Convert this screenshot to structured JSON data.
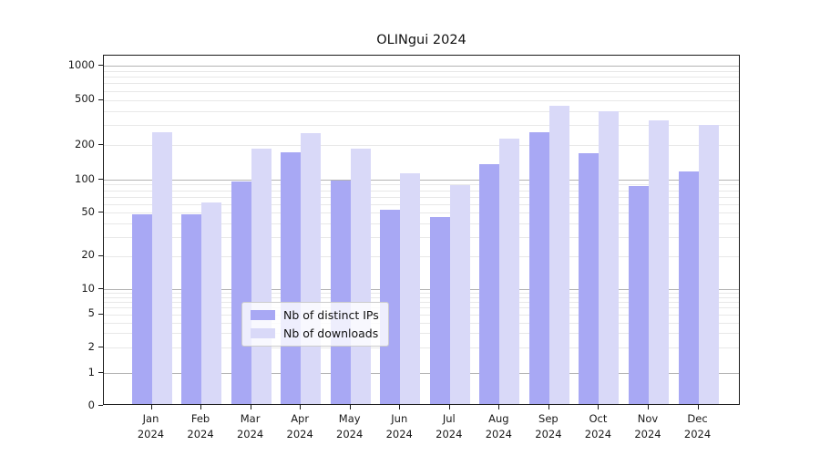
{
  "chart_data": {
    "type": "bar",
    "title": "OLINgui 2024",
    "categories": [
      "Jan 2024",
      "Feb 2024",
      "Mar 2024",
      "Apr 2024",
      "May 2024",
      "Jun 2024",
      "Jul 2024",
      "Aug 2024",
      "Sep 2024",
      "Oct 2024",
      "Nov 2024",
      "Dec 2024"
    ],
    "series": [
      {
        "name": "Nb of distinct IPs",
        "color": "#a8a8f4",
        "values": [
          46,
          46,
          92,
          168,
          95,
          51,
          44,
          132,
          250,
          165,
          84,
          113
        ]
      },
      {
        "name": "Nb of downloads",
        "color": "#d9d9f8",
        "values": [
          250,
          60,
          180,
          248,
          180,
          110,
          85,
          220,
          425,
          385,
          320,
          290
        ]
      }
    ],
    "xlabel": "",
    "ylabel": "",
    "yscale": "log-like with 0 baseline",
    "yticks": [
      0,
      1,
      2,
      5,
      10,
      20,
      50,
      100,
      200,
      500,
      1000
    ],
    "ylim": [
      0,
      1250
    ],
    "grid": true,
    "legend_position": "lower center",
    "colors": {
      "major_grid": "#b3b3b3",
      "minor_grid": "#e8e8e8",
      "axis": "#1a1a1a",
      "background": "#ffffff"
    }
  }
}
